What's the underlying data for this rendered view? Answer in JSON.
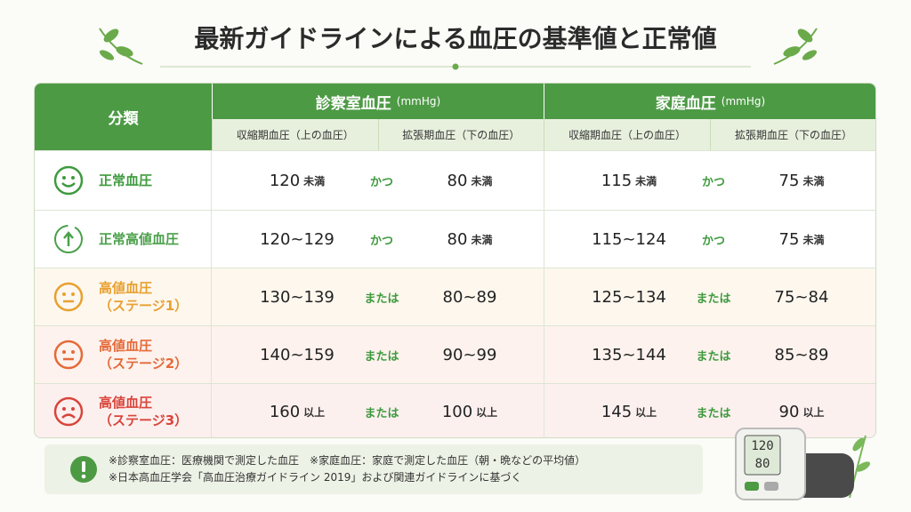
{
  "header": {
    "title": "最新ガイドラインによる血圧の基準値と正常値"
  },
  "table": {
    "category_header": "分類",
    "groups": [
      {
        "title": "診察室血圧",
        "unit": "(mmHg)",
        "columns": [
          "収縮期血圧（上の血圧）",
          "拡張期血圧（下の血圧）"
        ]
      },
      {
        "title": "家庭血圧",
        "unit": "(mmHg)",
        "columns": [
          "収縮期血圧（上の血圧）",
          "拡張期血圧（下の血圧）"
        ]
      }
    ],
    "rows": [
      {
        "label": [
          "正常血圧"
        ],
        "color": "#3f9a3f",
        "groups": [
          {
            "systolic": {
              "value": "120",
              "unit": "未満"
            },
            "connector": "かつ",
            "diastolic": {
              "value": "80",
              "unit": "未満"
            }
          },
          {
            "systolic": {
              "value": "115",
              "unit": "未満"
            },
            "connector": "かつ",
            "diastolic": {
              "value": "75",
              "unit": "未満"
            }
          }
        ]
      },
      {
        "label": [
          "正常高値血圧"
        ],
        "color": "#4aa04a",
        "groups": [
          {
            "systolic": {
              "value": "120~129"
            },
            "connector": "かつ",
            "diastolic": {
              "value": "80",
              "unit": "未満"
            }
          },
          {
            "systolic": {
              "value": "115~124"
            },
            "connector": "かつ",
            "diastolic": {
              "value": "75",
              "unit": "未満"
            }
          }
        ]
      },
      {
        "label": [
          "高値血圧",
          "（ステージ1）"
        ],
        "color": "#e8a030",
        "groups": [
          {
            "systolic": {
              "value": "130~139"
            },
            "connector": "または",
            "diastolic": {
              "value": "80~89"
            }
          },
          {
            "systolic": {
              "value": "125~134"
            },
            "connector": "または",
            "diastolic": {
              "value": "75~84"
            }
          }
        ]
      },
      {
        "label": [
          "高値血圧",
          "（ステージ2）"
        ],
        "color": "#e46a3a",
        "groups": [
          {
            "systolic": {
              "value": "140~159"
            },
            "connector": "または",
            "diastolic": {
              "value": "90~99"
            }
          },
          {
            "systolic": {
              "value": "135~144"
            },
            "connector": "または",
            "diastolic": {
              "value": "85~89"
            }
          }
        ]
      },
      {
        "label": [
          "高値血圧",
          "（ステージ3）"
        ],
        "color": "#d9443a",
        "groups": [
          {
            "systolic": {
              "value": "160",
              "unit": "以上"
            },
            "connector": "または",
            "diastolic": {
              "value": "100",
              "unit": "以上"
            }
          },
          {
            "systolic": {
              "value": "145",
              "unit": "以上"
            },
            "connector": "または",
            "diastolic": {
              "value": "90",
              "unit": "以上"
            }
          }
        ]
      }
    ]
  },
  "notes": [
    "※診察室血圧：医療機関で測定した血圧　※家庭血圧：家庭で測定した血圧（朝・晩などの平均値）",
    "※日本高血圧学会「高血圧治療ガイドライン 2019」および関連ガイドラインに基づく"
  ],
  "monitor": {
    "display": [
      "120",
      "80"
    ]
  }
}
